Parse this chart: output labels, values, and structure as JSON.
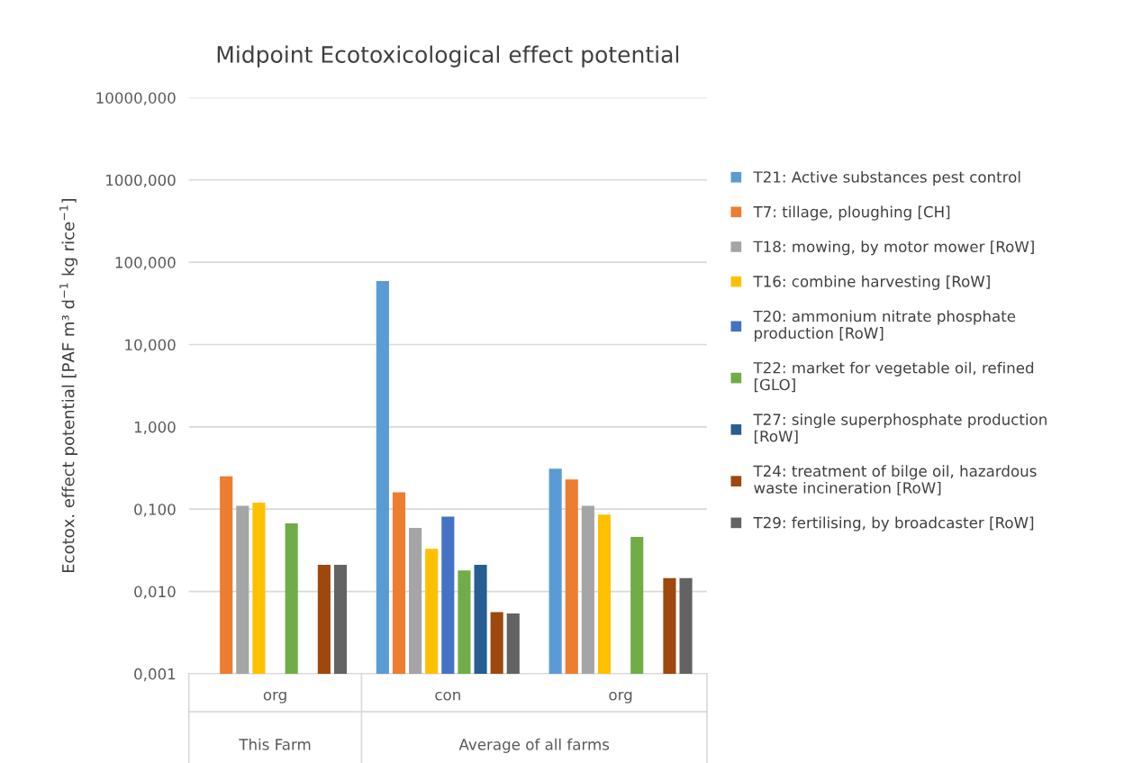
{
  "chart_data": {
    "type": "bar",
    "title": "Midpoint Ecotoxicological effect potential",
    "ylabel": "Ecotox. effect potential [PAF m³ d$^{−1}$ kg rice$^{−1}$]",
    "categories": [
      "org",
      "con",
      "org"
    ],
    "annotations": [
      "This Farm",
      "Average of all farms"
    ],
    "log": "y",
    "grid": "y",
    "legend": "right",
    "ylim": [
      0.001,
      10000
    ],
    "yticks": [
      {
        "value": 0.001,
        "label": "0,001"
      },
      {
        "value": 0.01,
        "label": "0,010"
      },
      {
        "value": 0.1,
        "label": "0,100"
      },
      {
        "value": 1,
        "label": "1,000"
      },
      {
        "value": 10,
        "label": "10,000"
      },
      {
        "value": 100,
        "label": "100,000"
      },
      {
        "value": 1000,
        "label": "1000,000"
      },
      {
        "value": 10000,
        "label": "10000,000"
      }
    ],
    "series": [
      {
        "name": "T21: Active substances pest control",
        "color": "#5b9bd5",
        "values": [
          null,
          59,
          0.31
        ]
      },
      {
        "name": "T7: tillage, ploughing [CH]",
        "color": "#ed7d31",
        "values": [
          0.25,
          0.16,
          0.23
        ]
      },
      {
        "name": "T18: mowing, by motor mower [RoW]",
        "color": "#a5a5a5",
        "values": [
          0.11,
          0.059,
          0.11
        ]
      },
      {
        "name": "T16: combine harvesting [RoW]",
        "color": "#ffc000",
        "values": [
          0.12,
          0.033,
          0.086
        ]
      },
      {
        "name": "T20: ammonium nitrate phosphate\nproduction [RoW]",
        "color": "#4472c4",
        "values": [
          null,
          0.081,
          null
        ]
      },
      {
        "name": "T22: market for vegetable oil, refined\n[GLO]",
        "color": "#70ad47",
        "values": [
          0.067,
          0.018,
          0.046
        ]
      },
      {
        "name": "T27: single superphosphate production\n[RoW]",
        "color": "#255e91",
        "values": [
          null,
          0.021,
          null
        ]
      },
      {
        "name": "T24: treatment of bilge oil, hazardous\nwaste incineration [RoW]",
        "color": "#9e480e",
        "values": [
          0.021,
          0.0056,
          0.0145
        ]
      },
      {
        "name": "T29: fertilising, by broadcaster [RoW]",
        "color": "#636363",
        "values": [
          0.021,
          0.0054,
          0.0145
        ]
      }
    ]
  }
}
